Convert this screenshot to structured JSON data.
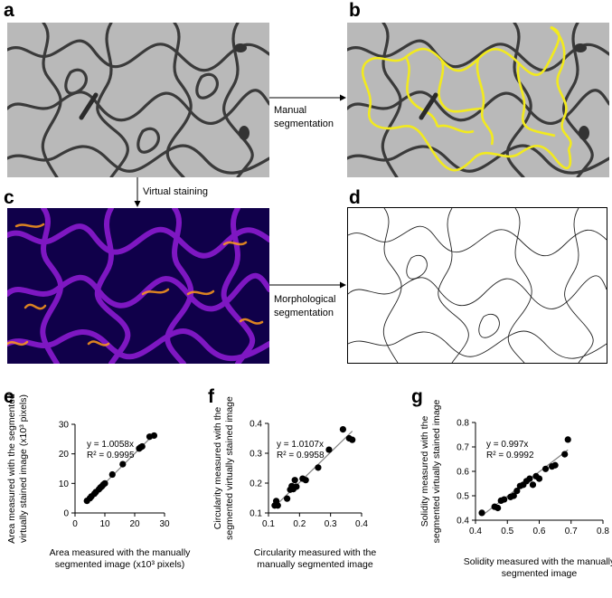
{
  "panels": {
    "a": "a",
    "b": "b",
    "c": "c",
    "d": "d",
    "e": "e",
    "f": "f",
    "g": "g"
  },
  "arrows": {
    "manual_line1": "Manual",
    "manual_line2": "segmentation",
    "virtual": "Virtual staining",
    "morph_line1": "Morphological",
    "morph_line2": "segmentation"
  },
  "colors": {
    "micrograph_bg": "#b9b9b9",
    "cell_wall": "#3a3a3a",
    "segment_yellow": "#f2ea1e",
    "stain_dark": "#10004a",
    "stain_mid": "#8a1ad0",
    "stain_hot": "#ff9a1a",
    "regression_line": "#808080"
  },
  "chart_data": [
    {
      "type": "scatter",
      "panel": "e",
      "xlabel_line1": "Area measured with the manually",
      "xlabel_line2": "segmented image (x10³ pixels)",
      "ylabel_line1": "Area measured with the segmented",
      "ylabel_line2": "virtually stained image (x10³ pixels)",
      "xlim": [
        0,
        30
      ],
      "ylim": [
        0,
        30
      ],
      "xticks": [
        "0",
        "10",
        "20",
        "30"
      ],
      "yticks": [
        "0",
        "10",
        "20",
        "30"
      ],
      "equation": "y = 1.0058x",
      "r2": "R² = 0.9995",
      "slope": 1.0058,
      "x": [
        4,
        5,
        5.5,
        6.5,
        7,
        8,
        8.5,
        9,
        9.5,
        10,
        12.5,
        16,
        21.5,
        22,
        22.5,
        25,
        26.5
      ],
      "y": [
        4.1,
        5,
        5.6,
        6.5,
        7.1,
        8,
        8.6,
        9,
        9.6,
        10,
        13,
        16.5,
        21.8,
        22.2,
        22.5,
        25.8,
        26.2
      ]
    },
    {
      "type": "scatter",
      "panel": "f",
      "xlabel_line1": "Circularity measured with the",
      "xlabel_line2": "manually segmented image",
      "ylabel_line1": "Circularity measured with the",
      "ylabel_line2": "segmented virtually stained image",
      "xlim": [
        0.1,
        0.4
      ],
      "ylim": [
        0.1,
        0.4
      ],
      "xticks": [
        "0.1",
        "0.2",
        "0.3",
        "0.4"
      ],
      "yticks": [
        "0.1",
        "0.2",
        "0.3",
        "0.4"
      ],
      "equation": "y = 1.0107x",
      "r2": "R² = 0.9958",
      "slope": 1.0107,
      "x": [
        0.12,
        0.125,
        0.13,
        0.16,
        0.17,
        0.175,
        0.18,
        0.185,
        0.19,
        0.21,
        0.22,
        0.26,
        0.295,
        0.34,
        0.36,
        0.37
      ],
      "y": [
        0.125,
        0.14,
        0.125,
        0.148,
        0.178,
        0.19,
        0.18,
        0.21,
        0.188,
        0.215,
        0.21,
        0.252,
        0.312,
        0.38,
        0.35,
        0.345
      ]
    },
    {
      "type": "scatter",
      "panel": "g",
      "xlabel_line1": "Solidity measured with the manually",
      "xlabel_line2": "segmented image",
      "ylabel_line1": "Solidity measured with the",
      "ylabel_line2": "segmented virtually stained image",
      "xlim": [
        0.4,
        0.8
      ],
      "ylim": [
        0.4,
        0.8
      ],
      "xticks": [
        "0.4",
        "0.5",
        "0.6",
        "0.7",
        "0.8"
      ],
      "yticks": [
        "0.4",
        "0.5",
        "0.6",
        "0.7",
        "0.8"
      ],
      "equation": "y = 0.997x",
      "r2": "R² = 0.9992",
      "slope": 0.997,
      "x": [
        0.42,
        0.46,
        0.47,
        0.48,
        0.49,
        0.51,
        0.52,
        0.53,
        0.54,
        0.55,
        0.56,
        0.57,
        0.58,
        0.59,
        0.6,
        0.62,
        0.64,
        0.65,
        0.68,
        0.69
      ],
      "y": [
        0.43,
        0.455,
        0.45,
        0.48,
        0.485,
        0.495,
        0.5,
        0.52,
        0.54,
        0.545,
        0.56,
        0.57,
        0.545,
        0.58,
        0.57,
        0.61,
        0.62,
        0.625,
        0.67,
        0.73
      ]
    }
  ]
}
